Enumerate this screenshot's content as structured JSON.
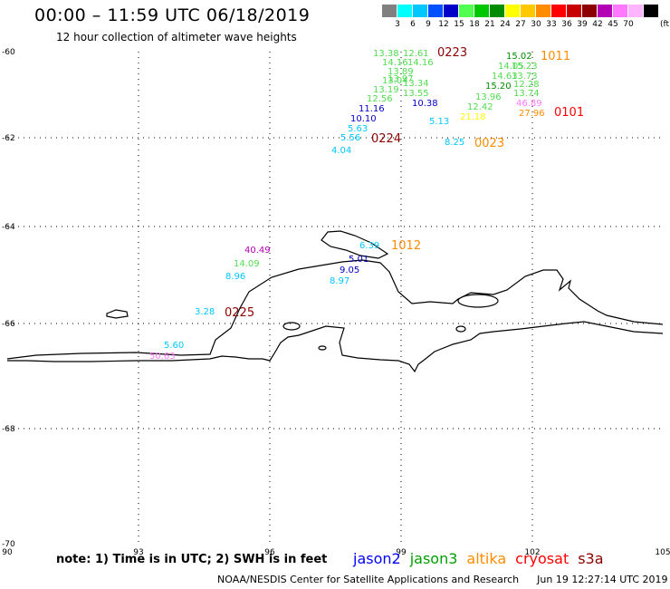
{
  "title": "00:00 – 11:59 UTC 06/18/2019",
  "subtitle": "12 hour collection of altimeter wave heights",
  "scale": {
    "colors": [
      "#808080",
      "#00ffff",
      "#00c8ff",
      "#0050ff",
      "#0000c8",
      "#50ff50",
      "#00c800",
      "#008c00",
      "#ffff00",
      "#ffc800",
      "#ff8c00",
      "#ff0000",
      "#c80000",
      "#8c0000",
      "#b400b4",
      "#ff78ff",
      "#ffb4ff",
      "#000000"
    ],
    "labels": [
      "3",
      "6",
      "9",
      "12",
      "15",
      "18",
      "21",
      "24",
      "27",
      "30",
      "33",
      "36",
      "39",
      "42",
      "45",
      "70"
    ],
    "unit": "(ft)"
  },
  "axes": {
    "lon_labels": [
      "90",
      "93",
      "96",
      "99",
      "102",
      "105"
    ],
    "lat_labels": [
      "-60",
      "-62",
      "-64",
      "-66",
      "-68",
      "-70"
    ]
  },
  "observations": [
    {
      "text": "13.38",
      "color": "#50dc50"
    },
    {
      "text": "12.61",
      "color": "#50dc50"
    },
    {
      "text": "14.16",
      "color": "#50dc50"
    },
    {
      "text": "14.16",
      "color": "#50dc50"
    },
    {
      "text": "13.89",
      "color": "#50dc50"
    },
    {
      "text": "13.97",
      "color": "#50dc50"
    },
    {
      "text": "13.04",
      "color": "#50dc50"
    },
    {
      "text": "13.34",
      "color": "#50dc50"
    },
    {
      "text": "13.19",
      "color": "#50dc50"
    },
    {
      "text": "13.55",
      "color": "#50dc50"
    },
    {
      "text": "12.56",
      "color": "#50dc50"
    },
    {
      "text": "11.16",
      "color": "#0000c8"
    },
    {
      "text": "10.38",
      "color": "#0000c8"
    },
    {
      "text": "10.10",
      "color": "#0000c8"
    },
    {
      "text": "5.63",
      "color": "#00c8ff"
    },
    {
      "text": "5.13",
      "color": "#00c8ff"
    },
    {
      "text": "5.56",
      "color": "#00c8ff"
    },
    {
      "text": "4.04",
      "color": "#00c8ff"
    },
    {
      "text": "6.39",
      "color": "#00c8ff"
    },
    {
      "text": "8.25",
      "color": "#00c8ff"
    },
    {
      "text": "15.02",
      "color": "#008c00"
    },
    {
      "text": "14.05",
      "color": "#50dc50"
    },
    {
      "text": "15.23",
      "color": "#50dc50"
    },
    {
      "text": "14.63",
      "color": "#50dc50"
    },
    {
      "text": "13.73",
      "color": "#50dc50"
    },
    {
      "text": "15.20",
      "color": "#008c00"
    },
    {
      "text": "12.28",
      "color": "#50dc50"
    },
    {
      "text": "13.96",
      "color": "#50dc50"
    },
    {
      "text": "13.74",
      "color": "#50dc50"
    },
    {
      "text": "12.42",
      "color": "#50dc50"
    },
    {
      "text": "46.89",
      "color": "#ff78ff"
    },
    {
      "text": "21.18",
      "color": "#ffff00"
    },
    {
      "text": "27.96",
      "color": "#ff8c00"
    },
    {
      "text": "40.49",
      "color": "#b400b4"
    },
    {
      "text": "14.09",
      "color": "#50dc50"
    },
    {
      "text": "8.96",
      "color": "#00c8ff"
    },
    {
      "text": "5.01",
      "color": "#0000c8"
    },
    {
      "text": "9.05",
      "color": "#0000c8"
    },
    {
      "text": "8.97",
      "color": "#00c8ff"
    },
    {
      "text": "3.28",
      "color": "#00c8ff"
    },
    {
      "text": "5.60",
      "color": "#00c8ff"
    },
    {
      "text": "50.63",
      "color": "#ff78ff"
    }
  ],
  "time_labels": [
    {
      "text": "0223",
      "color": "#8c0000"
    },
    {
      "text": "1011",
      "color": "#ff8c00"
    },
    {
      "text": "0101",
      "color": "#ff0000"
    },
    {
      "text": "0224",
      "color": "#8c0000"
    },
    {
      "text": "0023",
      "color": "#ff8c00"
    },
    {
      "text": "1012",
      "color": "#ff8c00"
    },
    {
      "text": "0225",
      "color": "#8c0000"
    }
  ],
  "footer": {
    "note": "note:  1) Time is in UTC;  2) SWH is in feet",
    "satellites": [
      {
        "name": "jason2",
        "color": "#0000ff"
      },
      {
        "name": "jason3",
        "color": "#00a000"
      },
      {
        "name": "altika",
        "color": "#ff8c00"
      },
      {
        "name": "cryosat",
        "color": "#ff0000"
      },
      {
        "name": "s3a",
        "color": "#8c0000"
      }
    ],
    "credit": "NOAA/NESDIS Center for Satellite Applications and Research",
    "timestamp": "Jun 19 12:27:14 UTC 2019"
  }
}
